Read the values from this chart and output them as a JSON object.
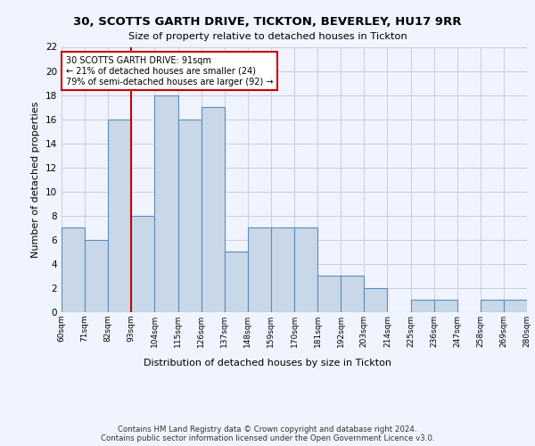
{
  "title1": "30, SCOTTS GARTH DRIVE, TICKTON, BEVERLEY, HU17 9RR",
  "title2": "Size of property relative to detached houses in Tickton",
  "xlabel": "Distribution of detached houses by size in Tickton",
  "ylabel": "Number of detached properties",
  "bin_edges": [
    60,
    71,
    82,
    93,
    104,
    115,
    126,
    137,
    148,
    159,
    170,
    181,
    192,
    203,
    214,
    225,
    236,
    247,
    258,
    269,
    280
  ],
  "counts": [
    7,
    6,
    16,
    8,
    18,
    16,
    17,
    5,
    7,
    7,
    7,
    3,
    3,
    2,
    0,
    1,
    1,
    0,
    1,
    1
  ],
  "bar_color": "#c8d8e8",
  "bar_edge_color": "#5b8db8",
  "vline_color": "#cc0000",
  "vline_x": 93,
  "annotation_text": "30 SCOTTS GARTH DRIVE: 91sqm\n← 21% of detached houses are smaller (24)\n79% of semi-detached houses are larger (92) →",
  "annotation_box_color": "white",
  "annotation_box_edge": "#cc0000",
  "ylim": [
    0,
    22
  ],
  "yticks": [
    0,
    2,
    4,
    6,
    8,
    10,
    12,
    14,
    16,
    18,
    20,
    22
  ],
  "tick_labels": [
    "60sqm",
    "71sqm",
    "82sqm",
    "93sqm",
    "104sqm",
    "115sqm",
    "126sqm",
    "137sqm",
    "148sqm",
    "159sqm",
    "170sqm",
    "181sqm",
    "192sqm",
    "203sqm",
    "214sqm",
    "225sqm",
    "236sqm",
    "247sqm",
    "258sqm",
    "269sqm",
    "280sqm"
  ],
  "footer": "Contains HM Land Registry data © Crown copyright and database right 2024.\nContains public sector information licensed under the Open Government Licence v3.0.",
  "bg_color": "#f0f4ff",
  "grid_color": "#ccccdd"
}
